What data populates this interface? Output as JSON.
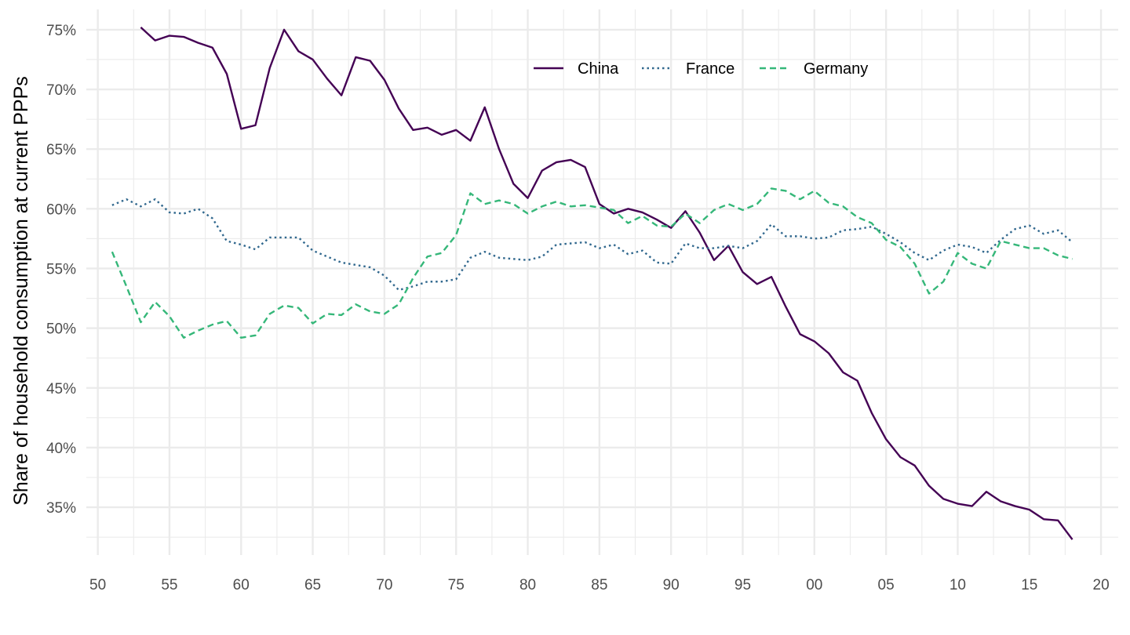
{
  "chart_data": {
    "type": "line",
    "title": "",
    "xlabel": "",
    "ylabel": "Share of household consumption at current PPPs",
    "x_ticks": [
      1950,
      1955,
      1960,
      1965,
      1970,
      1975,
      1980,
      1985,
      1990,
      1995,
      2000,
      2005,
      2010,
      2015,
      2020
    ],
    "x_tick_labels": [
      "50",
      "55",
      "60",
      "65",
      "70",
      "75",
      "80",
      "85",
      "90",
      "95",
      "00",
      "05",
      "10",
      "15",
      "20"
    ],
    "xlim": [
      1949.2,
      2021.2
    ],
    "y_ticks": [
      35,
      40,
      45,
      50,
      55,
      60,
      65,
      70,
      75
    ],
    "y_tick_labels": [
      "35%",
      "40%",
      "45%",
      "50%",
      "55%",
      "60%",
      "65%",
      "70%",
      "75%"
    ],
    "ylim": [
      31.0,
      76.7
    ],
    "grid": true,
    "legend_position": "top",
    "series": [
      {
        "name": "China",
        "color": "#440154",
        "dash": "solid",
        "x": [
          1953,
          1954,
          1955,
          1956,
          1957,
          1958,
          1959,
          1960,
          1961,
          1962,
          1963,
          1964,
          1965,
          1966,
          1967,
          1968,
          1969,
          1970,
          1971,
          1972,
          1973,
          1974,
          1975,
          1976,
          1977,
          1978,
          1979,
          1980,
          1981,
          1982,
          1983,
          1984,
          1985,
          1986,
          1987,
          1988,
          1989,
          1990,
          1991,
          1992,
          1993,
          1994,
          1995,
          1996,
          1997,
          1998,
          1999,
          2000,
          2001,
          2002,
          2003,
          2004,
          2005,
          2006,
          2007,
          2008,
          2009,
          2010,
          2011,
          2012,
          2013,
          2014,
          2015,
          2016,
          2017,
          2018
        ],
        "values": [
          75.2,
          74.1,
          74.5,
          74.4,
          73.9,
          73.5,
          71.3,
          66.7,
          67.0,
          71.8,
          75.0,
          73.2,
          72.5,
          70.9,
          69.5,
          72.7,
          72.4,
          70.8,
          68.4,
          66.6,
          66.8,
          66.2,
          66.6,
          65.7,
          68.5,
          65.0,
          62.1,
          60.9,
          63.2,
          63.9,
          64.1,
          63.5,
          60.4,
          59.6,
          60.0,
          59.7,
          59.1,
          58.4,
          59.8,
          58.0,
          55.7,
          56.9,
          54.7,
          53.7,
          54.3,
          51.8,
          49.5,
          48.9,
          47.9,
          46.3,
          45.6,
          42.9,
          40.7,
          39.2,
          38.5,
          36.8,
          35.7,
          35.3,
          35.1,
          36.3,
          35.5,
          35.1,
          34.8,
          34.0,
          33.9,
          32.3
        ]
      },
      {
        "name": "France",
        "color": "#31688e",
        "dash": "dotted",
        "x": [
          1951,
          1952,
          1953,
          1954,
          1955,
          1956,
          1957,
          1958,
          1959,
          1960,
          1961,
          1962,
          1963,
          1964,
          1965,
          1966,
          1967,
          1968,
          1969,
          1970,
          1971,
          1972,
          1973,
          1974,
          1975,
          1976,
          1977,
          1978,
          1979,
          1980,
          1981,
          1982,
          1983,
          1984,
          1985,
          1986,
          1987,
          1988,
          1989,
          1990,
          1991,
          1992,
          1993,
          1994,
          1995,
          1996,
          1997,
          1998,
          1999,
          2000,
          2001,
          2002,
          2003,
          2004,
          2005,
          2006,
          2007,
          2008,
          2009,
          2010,
          2011,
          2012,
          2013,
          2014,
          2015,
          2016,
          2017,
          2018
        ],
        "values": [
          60.3,
          60.8,
          60.2,
          60.8,
          59.7,
          59.6,
          60.0,
          59.2,
          57.3,
          57.0,
          56.6,
          57.6,
          57.6,
          57.6,
          56.5,
          56.0,
          55.5,
          55.3,
          55.1,
          54.4,
          53.2,
          53.5,
          53.9,
          53.9,
          54.1,
          55.9,
          56.4,
          55.9,
          55.8,
          55.7,
          56.0,
          57.0,
          57.1,
          57.2,
          56.7,
          57.0,
          56.2,
          56.5,
          55.5,
          55.4,
          57.1,
          56.7,
          56.7,
          56.9,
          56.7,
          57.3,
          58.7,
          57.7,
          57.7,
          57.5,
          57.6,
          58.2,
          58.3,
          58.5,
          57.9,
          57.2,
          56.3,
          55.7,
          56.5,
          57.0,
          56.8,
          56.3,
          57.4,
          58.3,
          58.6,
          57.9,
          58.2,
          57.2
        ]
      },
      {
        "name": "Germany",
        "color": "#35b779",
        "dash": "dashed",
        "x": [
          1951,
          1952,
          1953,
          1954,
          1955,
          1956,
          1957,
          1958,
          1959,
          1960,
          1961,
          1962,
          1963,
          1964,
          1965,
          1966,
          1967,
          1968,
          1969,
          1970,
          1971,
          1972,
          1973,
          1974,
          1975,
          1976,
          1977,
          1978,
          1979,
          1980,
          1981,
          1982,
          1983,
          1984,
          1985,
          1986,
          1987,
          1988,
          1989,
          1990,
          1991,
          1992,
          1993,
          1994,
          1995,
          1996,
          1997,
          1998,
          1999,
          2000,
          2001,
          2002,
          2003,
          2004,
          2005,
          2006,
          2007,
          2008,
          2009,
          2010,
          2011,
          2012,
          2013,
          2014,
          2015,
          2016,
          2017,
          2018
        ],
        "values": [
          56.4,
          53.5,
          50.5,
          52.2,
          51.0,
          49.2,
          49.8,
          50.3,
          50.6,
          49.2,
          49.4,
          51.2,
          51.9,
          51.7,
          50.4,
          51.2,
          51.1,
          52.0,
          51.4,
          51.2,
          52.0,
          54.2,
          56.0,
          56.3,
          57.8,
          61.3,
          60.4,
          60.7,
          60.4,
          59.6,
          60.2,
          60.6,
          60.2,
          60.3,
          60.1,
          59.9,
          58.8,
          59.4,
          58.6,
          58.5,
          59.6,
          58.8,
          59.9,
          60.4,
          59.9,
          60.4,
          61.7,
          61.5,
          60.8,
          61.5,
          60.5,
          60.2,
          59.3,
          58.8,
          57.4,
          56.8,
          55.4,
          52.9,
          53.9,
          56.3,
          55.4,
          55.0,
          57.3,
          57.0,
          56.7,
          56.7,
          56.1,
          55.8
        ]
      }
    ]
  }
}
